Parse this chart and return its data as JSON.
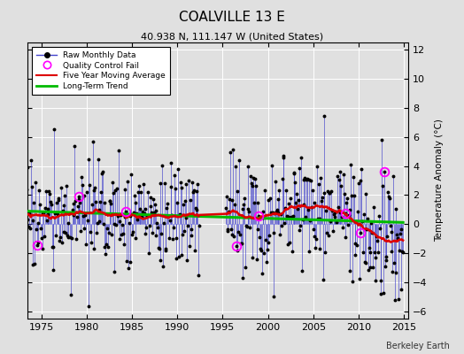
{
  "title": "COALVILLE 13 E",
  "subtitle": "40.938 N, 111.147 W (United States)",
  "ylabel": "Temperature Anomaly (°C)",
  "xlim": [
    1973.5,
    2015.5
  ],
  "ylim": [
    -6.5,
    12.5
  ],
  "yticks": [
    -6,
    -4,
    -2,
    0,
    2,
    4,
    6,
    8,
    10,
    12
  ],
  "xticks": [
    1975,
    1980,
    1985,
    1990,
    1995,
    2000,
    2005,
    2010,
    2015
  ],
  "raw_line_color": "#4444cc",
  "raw_dot_color": "#000000",
  "ma_color": "#dd0000",
  "trend_color": "#00bb00",
  "qc_color": "#ff00ff",
  "bg_color": "#e0e0e0",
  "watermark": "Berkeley Earth",
  "start_year": 1973,
  "end_year": 2014,
  "gap_start": 1992.5,
  "gap_end": 1995.3,
  "seed": 17
}
